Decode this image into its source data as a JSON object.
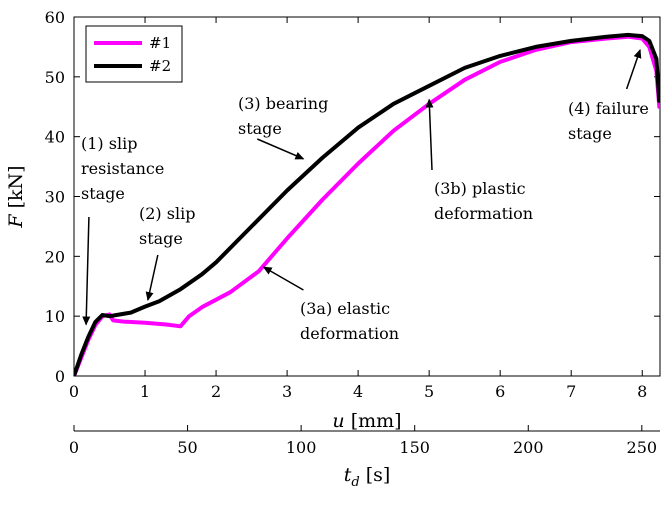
{
  "chart_data": {
    "type": "line",
    "xlabel": "u [mm]",
    "ylabel": "F [kN]",
    "xlim": [
      0,
      8.25
    ],
    "ylim": [
      0,
      60
    ],
    "x_ticks": [
      0,
      1,
      2,
      3,
      4,
      5,
      6,
      7,
      8
    ],
    "y_ticks": [
      0,
      10,
      20,
      30,
      40,
      50,
      60
    ],
    "grid": false,
    "legend_position": "top-left",
    "secondary_axis": {
      "label": "t_d [s]",
      "lim": [
        0,
        258
      ],
      "ticks": [
        0,
        50,
        100,
        150,
        200,
        250
      ]
    },
    "series": [
      {
        "name": "#1",
        "color": "#ff00ff",
        "x": [
          0,
          0.1,
          0.2,
          0.3,
          0.4,
          0.5,
          0.55,
          0.7,
          1.0,
          1.3,
          1.5,
          1.55,
          1.62,
          1.8,
          2.2,
          2.6,
          3.0,
          3.5,
          4.0,
          4.5,
          5.0,
          5.5,
          6.0,
          6.5,
          7.0,
          7.5,
          7.8,
          8.0,
          8.1,
          8.2,
          8.24
        ],
        "y": [
          0,
          3.0,
          6.0,
          8.5,
          10.0,
          10.3,
          9.3,
          9.1,
          8.9,
          8.6,
          8.3,
          9.0,
          10.0,
          11.5,
          14.0,
          17.5,
          23.0,
          29.5,
          35.5,
          41.0,
          45.5,
          49.5,
          52.5,
          54.5,
          55.8,
          56.4,
          56.7,
          56.4,
          55.0,
          51.0,
          45.0
        ]
      },
      {
        "name": "#2",
        "color": "#000000",
        "x": [
          0,
          0.1,
          0.2,
          0.3,
          0.4,
          0.5,
          0.6,
          0.8,
          1.0,
          1.2,
          1.5,
          1.8,
          2.0,
          2.5,
          3.0,
          3.5,
          4.0,
          4.5,
          5.0,
          5.5,
          6.0,
          6.5,
          7.0,
          7.5,
          7.8,
          8.0,
          8.1,
          8.2,
          8.24
        ],
        "y": [
          0,
          3.5,
          6.5,
          9.0,
          10.2,
          10.0,
          10.2,
          10.6,
          11.6,
          12.5,
          14.5,
          17.0,
          19.0,
          25.0,
          31.0,
          36.5,
          41.5,
          45.5,
          48.5,
          51.5,
          53.5,
          55.0,
          56.0,
          56.7,
          57.0,
          56.8,
          56.0,
          53.0,
          46.0
        ]
      }
    ],
    "annotations": [
      {
        "lines": [
          "(1) slip",
          "resistance",
          "stage"
        ]
      },
      {
        "lines": [
          "(2) slip",
          "stage"
        ]
      },
      {
        "lines": [
          "(3) bearing",
          "stage"
        ]
      },
      {
        "lines": [
          "(3a) elastic",
          "deformation"
        ]
      },
      {
        "lines": [
          "(3b) plastic",
          "deformation"
        ]
      },
      {
        "lines": [
          "(4) failure",
          "stage"
        ]
      }
    ]
  }
}
